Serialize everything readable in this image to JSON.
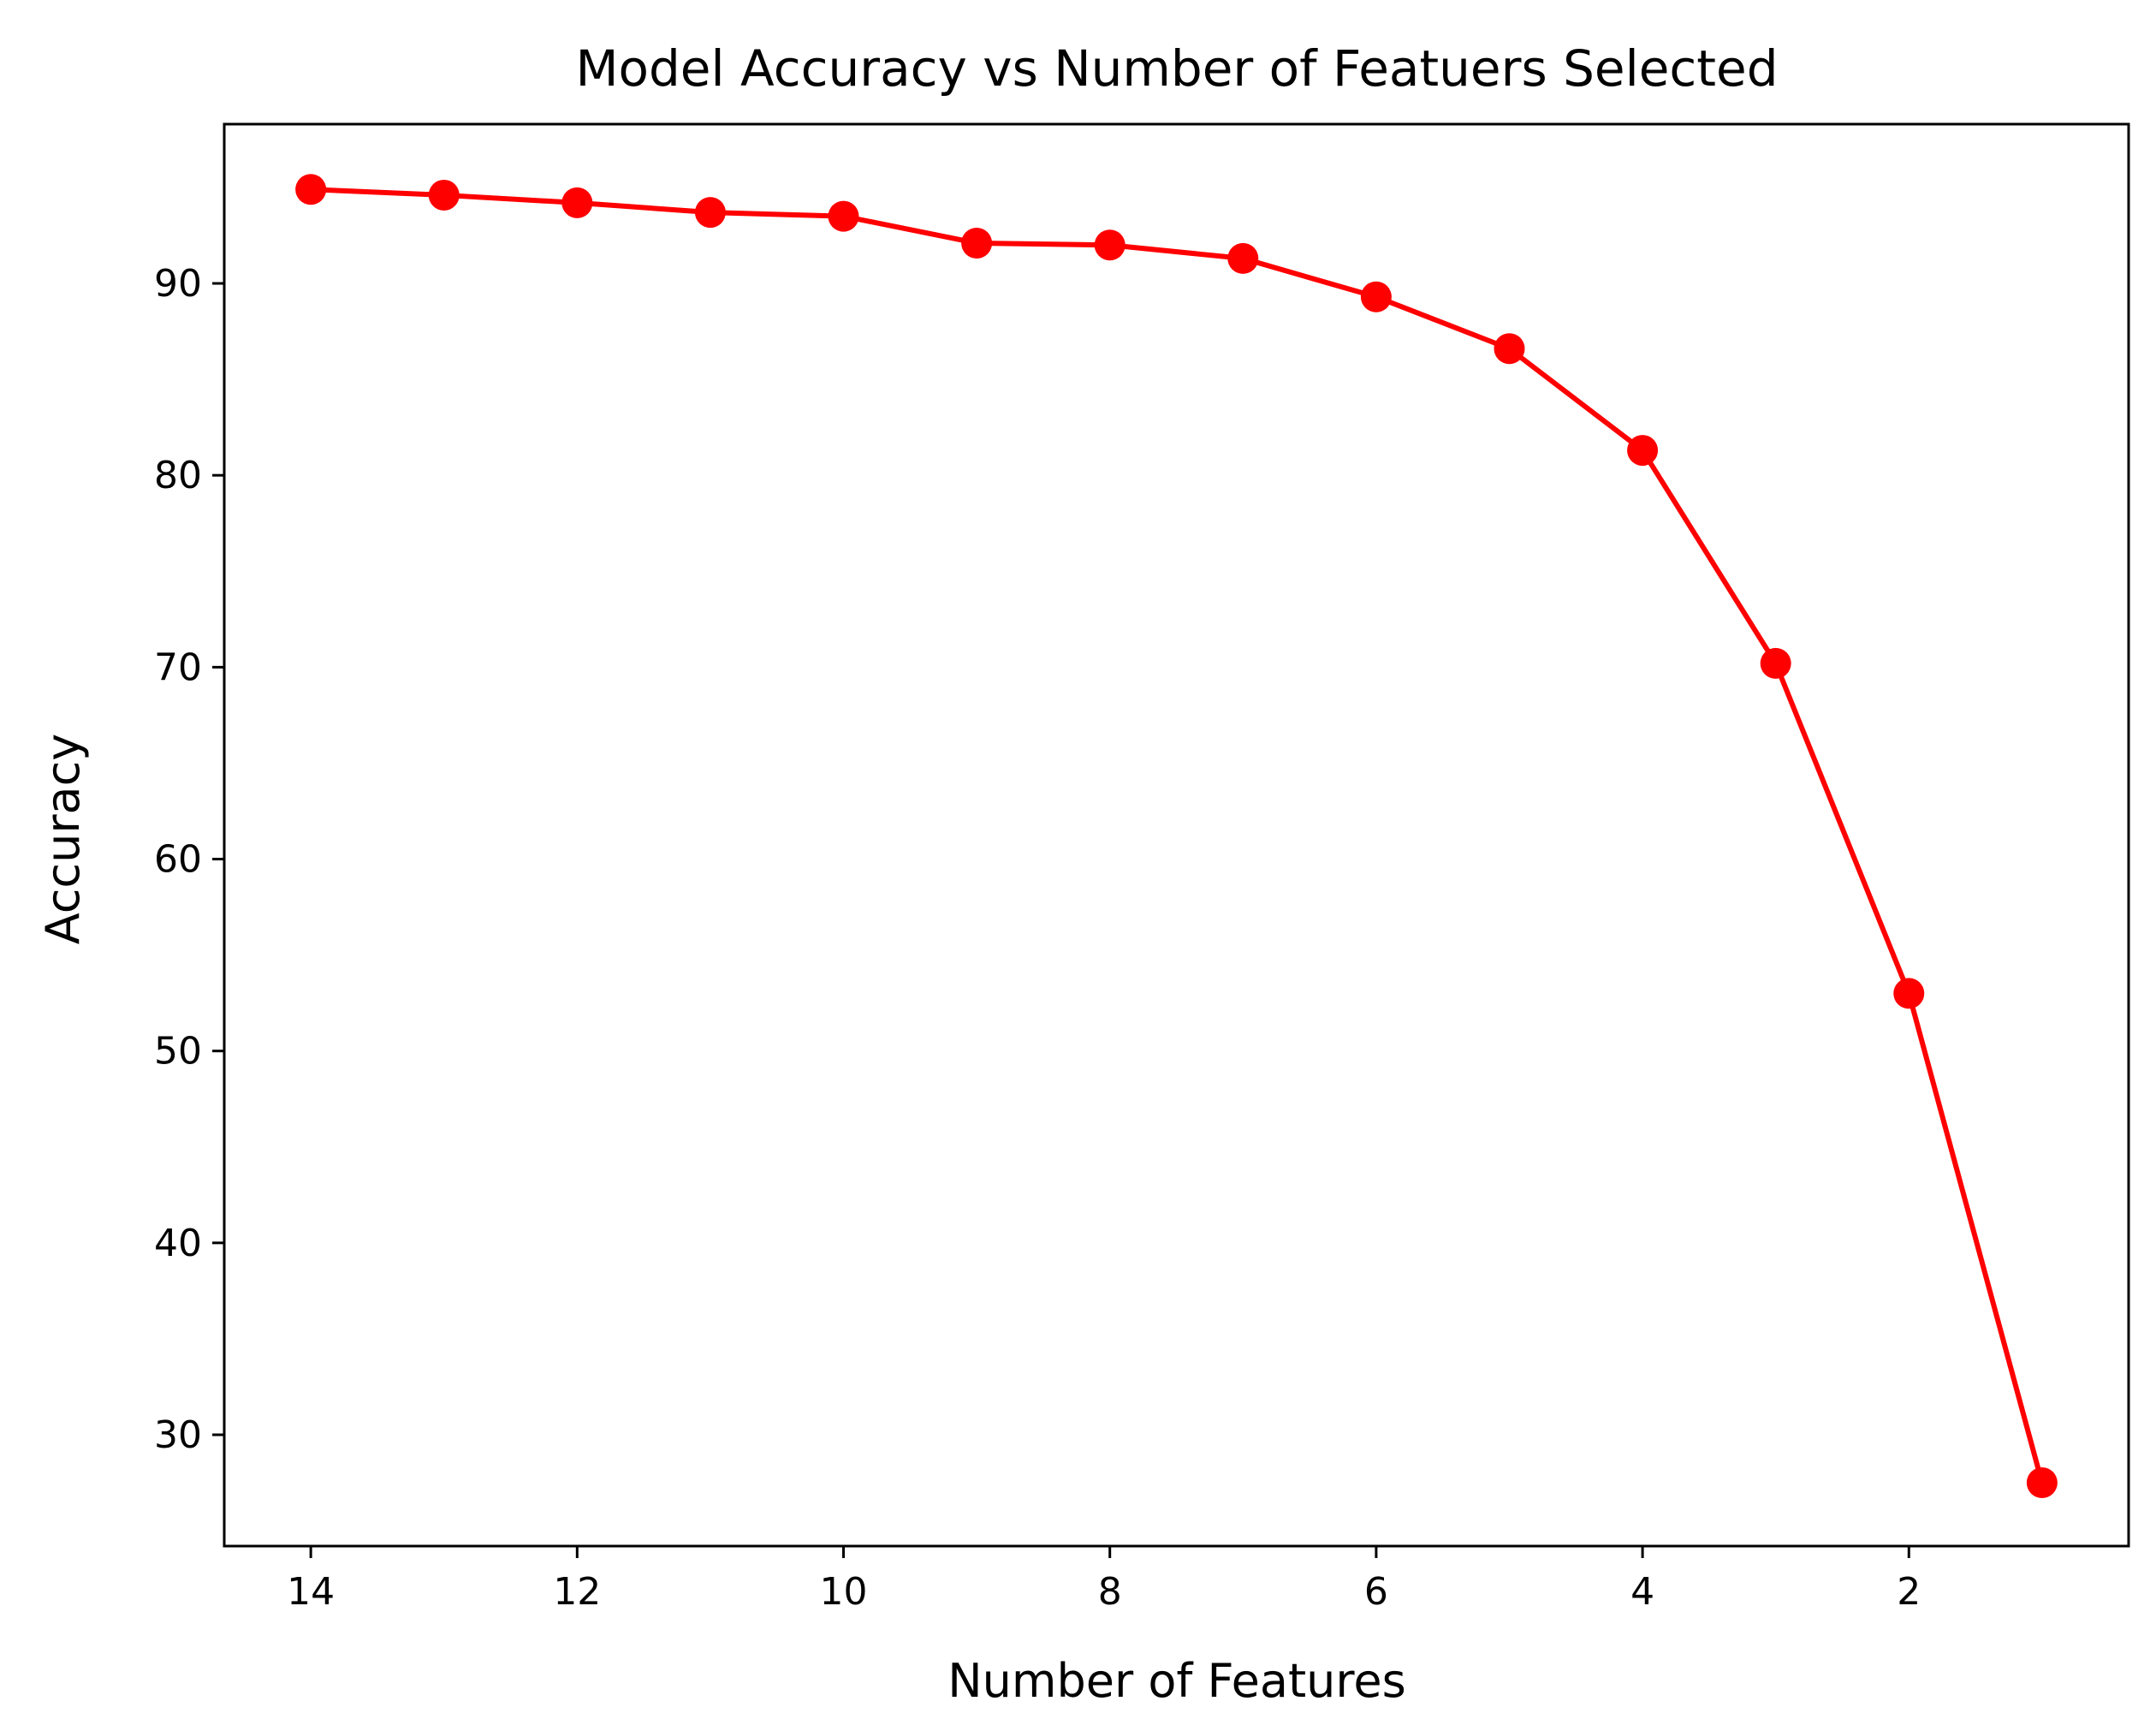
{
  "chart_data": {
    "type": "line",
    "title": "Model Accuracy vs Number of Featuers Selected",
    "xlabel": "Number of Features",
    "ylabel": "Accuracy",
    "x_inverted": true,
    "xlim": [
      14.65,
      0.35
    ],
    "ylim": [
      24.2,
      98.3
    ],
    "xticks": [
      14,
      12,
      10,
      8,
      6,
      4,
      2
    ],
    "yticks": [
      30,
      40,
      50,
      60,
      70,
      80,
      90
    ],
    "grid": false,
    "legend": null,
    "series": [
      {
        "color": "#ff0000",
        "marker": "circle",
        "x": [
          14,
          13,
          12,
          11,
          10,
          9,
          8,
          7,
          6,
          5,
          4,
          3,
          2,
          1
        ],
        "y": [
          94.9,
          94.6,
          94.2,
          93.7,
          93.5,
          92.1,
          92.0,
          91.3,
          89.3,
          86.6,
          81.3,
          70.2,
          53.0,
          27.5
        ]
      }
    ]
  }
}
